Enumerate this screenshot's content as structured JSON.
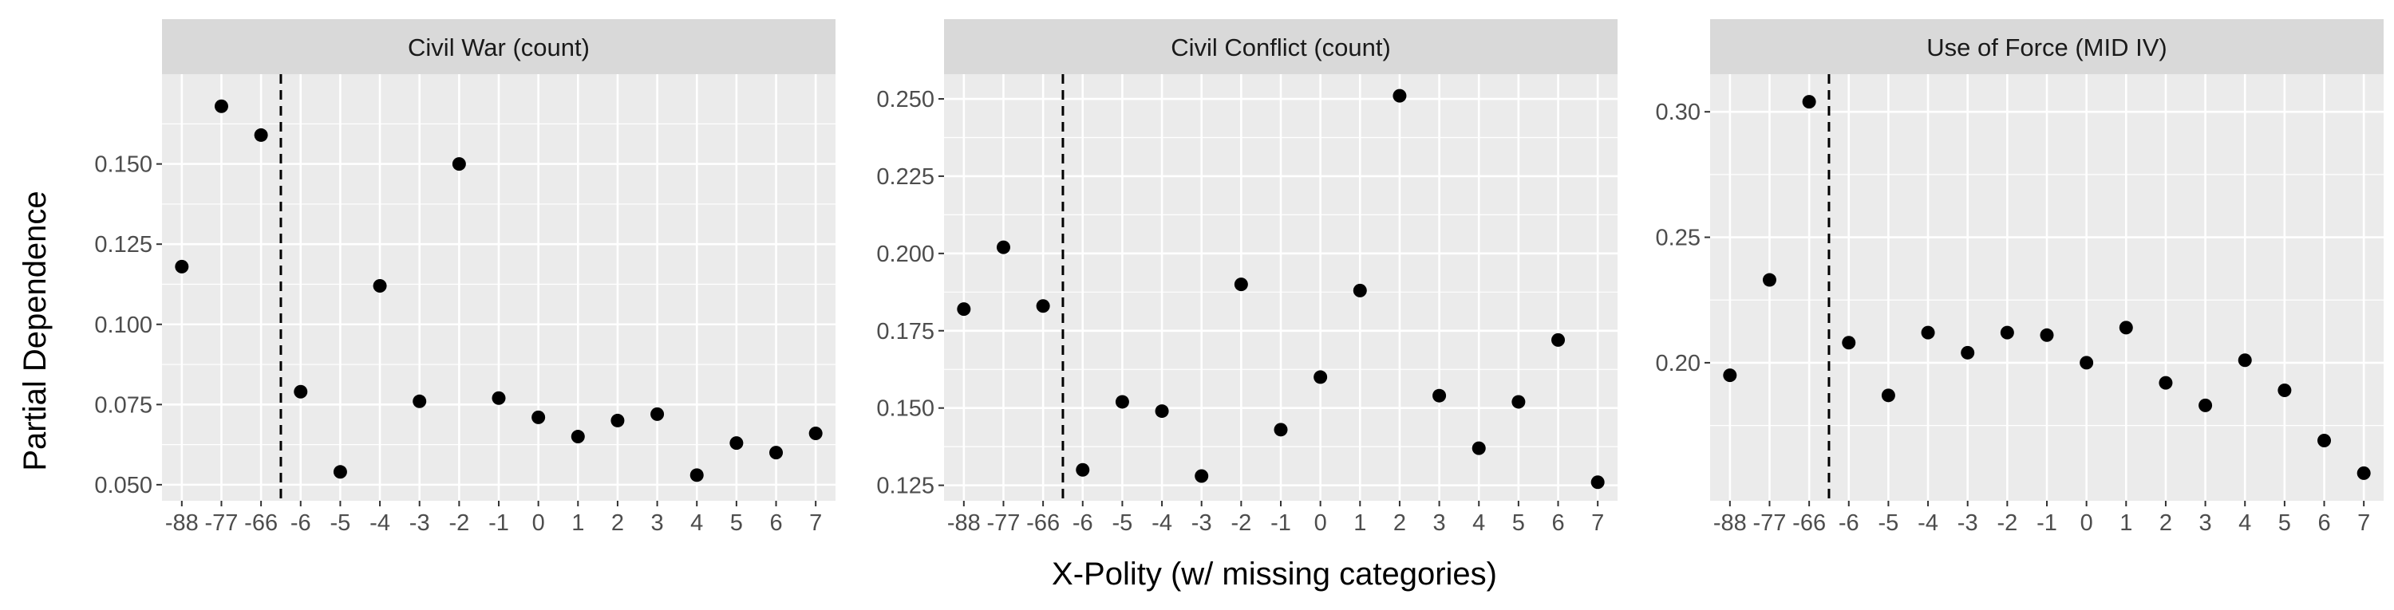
{
  "figure": {
    "ylabel": "Partial Dependence",
    "xlabel": "X-Polity (w/ missing categories)"
  },
  "chart_data": [
    {
      "type": "scatter",
      "title": "Civil War (count)",
      "xlabel": "X-Polity (w/ missing categories)",
      "ylabel": "Partial Dependence",
      "categories": [
        "-88",
        "-77",
        "-66",
        "-6",
        "-5",
        "-4",
        "-3",
        "-2",
        "-1",
        "0",
        "1",
        "2",
        "3",
        "4",
        "5",
        "6",
        "7"
      ],
      "values": [
        0.118,
        0.168,
        0.159,
        0.079,
        0.054,
        0.112,
        0.076,
        0.15,
        0.077,
        0.071,
        0.065,
        0.07,
        0.072,
        0.053,
        0.063,
        0.06,
        0.066
      ],
      "ylim": [
        0.045,
        0.178
      ],
      "yticks": [
        0.05,
        0.075,
        0.1,
        0.125,
        0.15
      ],
      "ytick_labels": [
        "0.050",
        "0.075",
        "0.100",
        "0.125",
        "0.150"
      ],
      "vline_after_category": "-66",
      "grid": true
    },
    {
      "type": "scatter",
      "title": "Civil Conflict (count)",
      "xlabel": "X-Polity (w/ missing categories)",
      "ylabel": "Partial Dependence",
      "categories": [
        "-88",
        "-77",
        "-66",
        "-6",
        "-5",
        "-4",
        "-3",
        "-2",
        "-1",
        "0",
        "1",
        "2",
        "3",
        "4",
        "5",
        "6",
        "7"
      ],
      "values": [
        0.182,
        0.202,
        0.183,
        0.13,
        0.152,
        0.149,
        0.128,
        0.19,
        0.143,
        0.16,
        0.188,
        0.251,
        0.154,
        0.137,
        0.152,
        0.172,
        0.126
      ],
      "ylim": [
        0.12,
        0.258
      ],
      "yticks": [
        0.125,
        0.15,
        0.175,
        0.2,
        0.225,
        0.25
      ],
      "ytick_labels": [
        "0.125",
        "0.150",
        "0.175",
        "0.200",
        "0.225",
        "0.250"
      ],
      "vline_after_category": "-66",
      "grid": true
    },
    {
      "type": "scatter",
      "title": "Use of Force (MID IV)",
      "xlabel": "X-Polity (w/ missing categories)",
      "ylabel": "Partial Dependence",
      "categories": [
        "-88",
        "-77",
        "-66",
        "-6",
        "-5",
        "-4",
        "-3",
        "-2",
        "-1",
        "0",
        "1",
        "2",
        "3",
        "4",
        "5",
        "6",
        "7"
      ],
      "values": [
        0.195,
        0.233,
        0.304,
        0.208,
        0.187,
        0.212,
        0.204,
        0.212,
        0.211,
        0.2,
        0.214,
        0.192,
        0.183,
        0.201,
        0.189,
        0.169,
        0.156
      ],
      "ylim": [
        0.145,
        0.315
      ],
      "yticks": [
        0.2,
        0.25,
        0.3
      ],
      "ytick_labels": [
        "0.20",
        "0.25",
        "0.30"
      ],
      "vline_after_category": "-66",
      "grid": true
    }
  ]
}
